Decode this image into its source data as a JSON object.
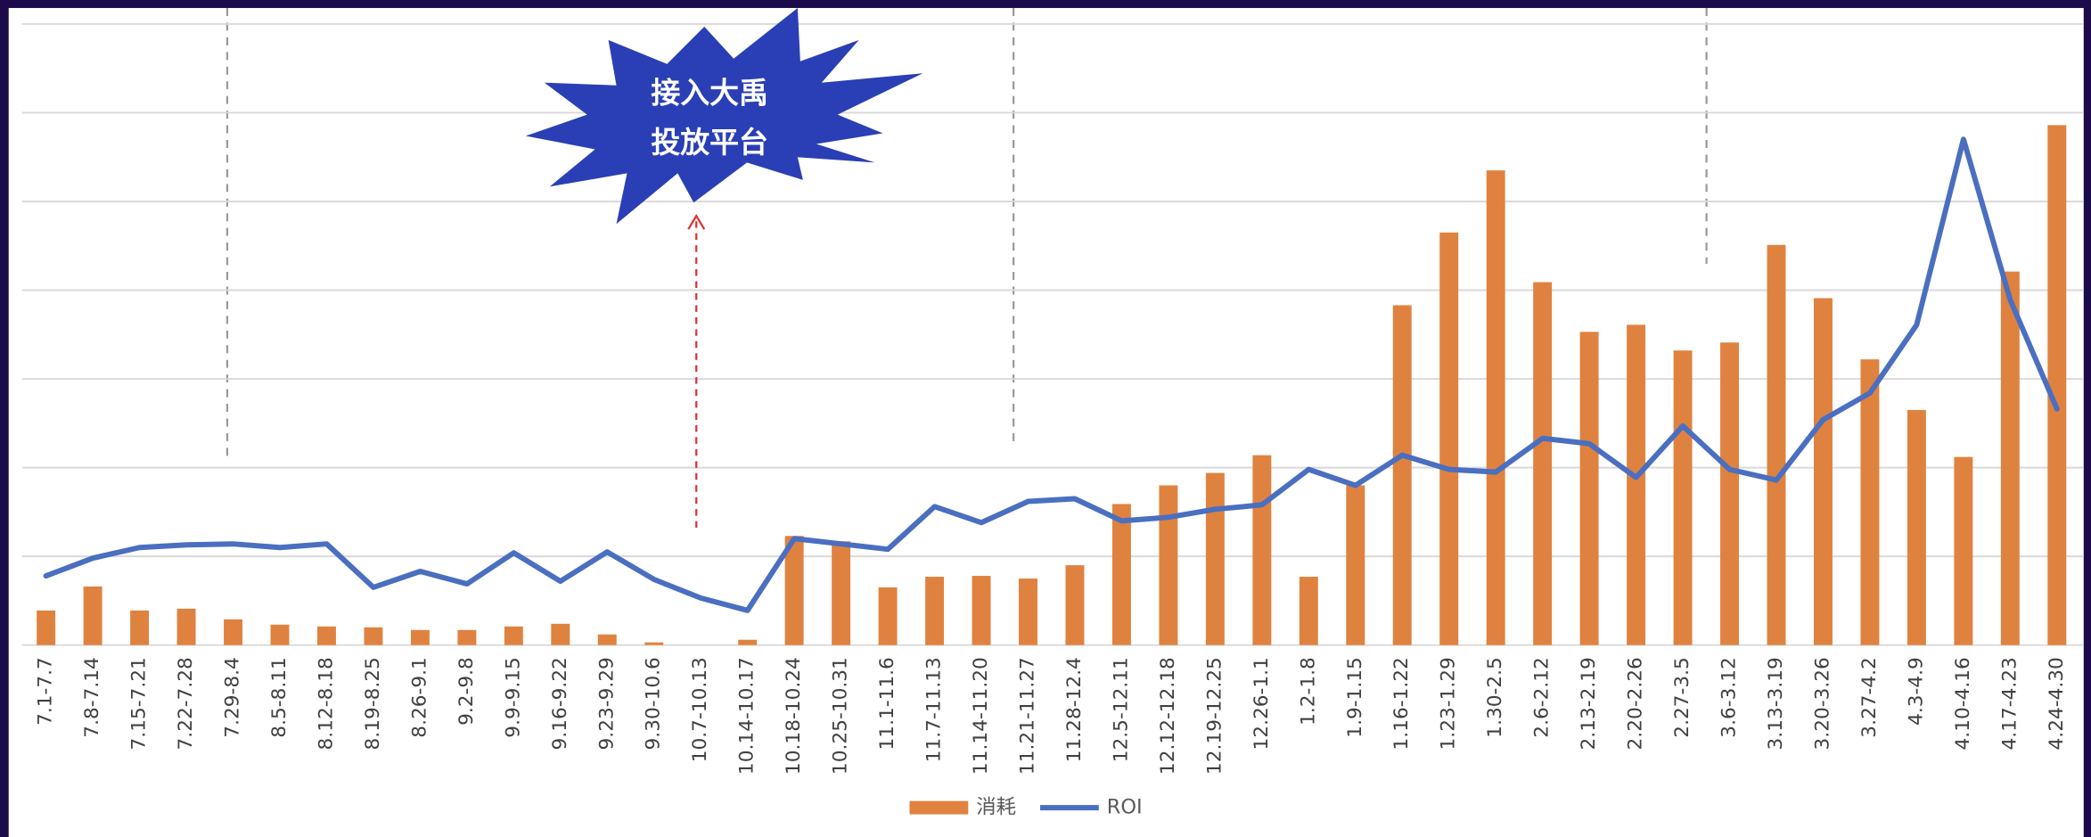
{
  "chart_data": {
    "type": "bar-line",
    "annotation": [
      "接入大禹",
      "投放平台"
    ],
    "categories": [
      "7.1-7.7",
      "7.8-7.14",
      "7.15-7.21",
      "7.22-7.28",
      "7.29-8.4",
      "8.5-8.11",
      "8.12-8.18",
      "8.19-8.25",
      "8.26-9.1",
      "9.2-9.8",
      "9.9-9.15",
      "9.16-9.22",
      "9.23-9.29",
      "9.30-10.6",
      "10.7-10.13",
      "10.14-10.17",
      "10.18-10.24",
      "10.25-10.31",
      "11.1-11.6",
      "11.7-11.13",
      "11.14-11.20",
      "11.21-11.27",
      "11.28-12.4",
      "12.5-12.11",
      "12.12-12.18",
      "12.19-12.25",
      "12.26-1.1",
      "1.2-1.8",
      "1.9-1.15",
      "1.16-1.22",
      "1.23-1.29",
      "1.30-2.5",
      "2.6-2.12",
      "2.13-2.19",
      "2.20-2.26",
      "2.27-3.5",
      "3.6-3.12",
      "3.13-3.19",
      "3.20-3.26",
      "3.27-4.2",
      "4.3-4.9",
      "4.10-4.16",
      "4.17-4.23",
      "4.24-4.30"
    ],
    "series": [
      {
        "name": "消耗",
        "type": "bar",
        "color": "#e0823f",
        "values": [
          0.39,
          0.66,
          0.39,
          0.41,
          0.29,
          0.23,
          0.21,
          0.2,
          0.17,
          0.17,
          0.21,
          0.24,
          0.12,
          0.03,
          0,
          0.06,
          1.23,
          1.17,
          0.65,
          0.77,
          0.78,
          0.75,
          0.9,
          1.59,
          1.8,
          1.94,
          2.14,
          0.77,
          1.8,
          3.83,
          4.65,
          5.35,
          4.09,
          3.53,
          3.61,
          3.32,
          3.41,
          4.51,
          3.91,
          3.22,
          2.65,
          2.12,
          4.21,
          5.86
        ]
      },
      {
        "name": "ROI",
        "type": "line",
        "color": "#4a6fc0",
        "values": [
          0.78,
          0.98,
          1.1,
          1.13,
          1.14,
          1.1,
          1.14,
          0.65,
          0.83,
          0.69,
          1.04,
          0.72,
          1.05,
          0.74,
          0.53,
          0.39,
          1.2,
          1.14,
          1.08,
          1.56,
          1.38,
          1.62,
          1.65,
          1.4,
          1.44,
          1.53,
          1.58,
          1.98,
          1.8,
          2.14,
          1.98,
          1.95,
          2.33,
          2.27,
          1.89,
          2.47,
          1.98,
          1.86,
          2.54,
          2.84,
          3.61,
          5.7,
          3.89,
          2.66
        ]
      }
    ],
    "ylim": [
      0,
      7
    ],
    "yticks": [
      0,
      1,
      2,
      3,
      4,
      5,
      6,
      7
    ],
    "grid": true,
    "legend": "bottom"
  }
}
